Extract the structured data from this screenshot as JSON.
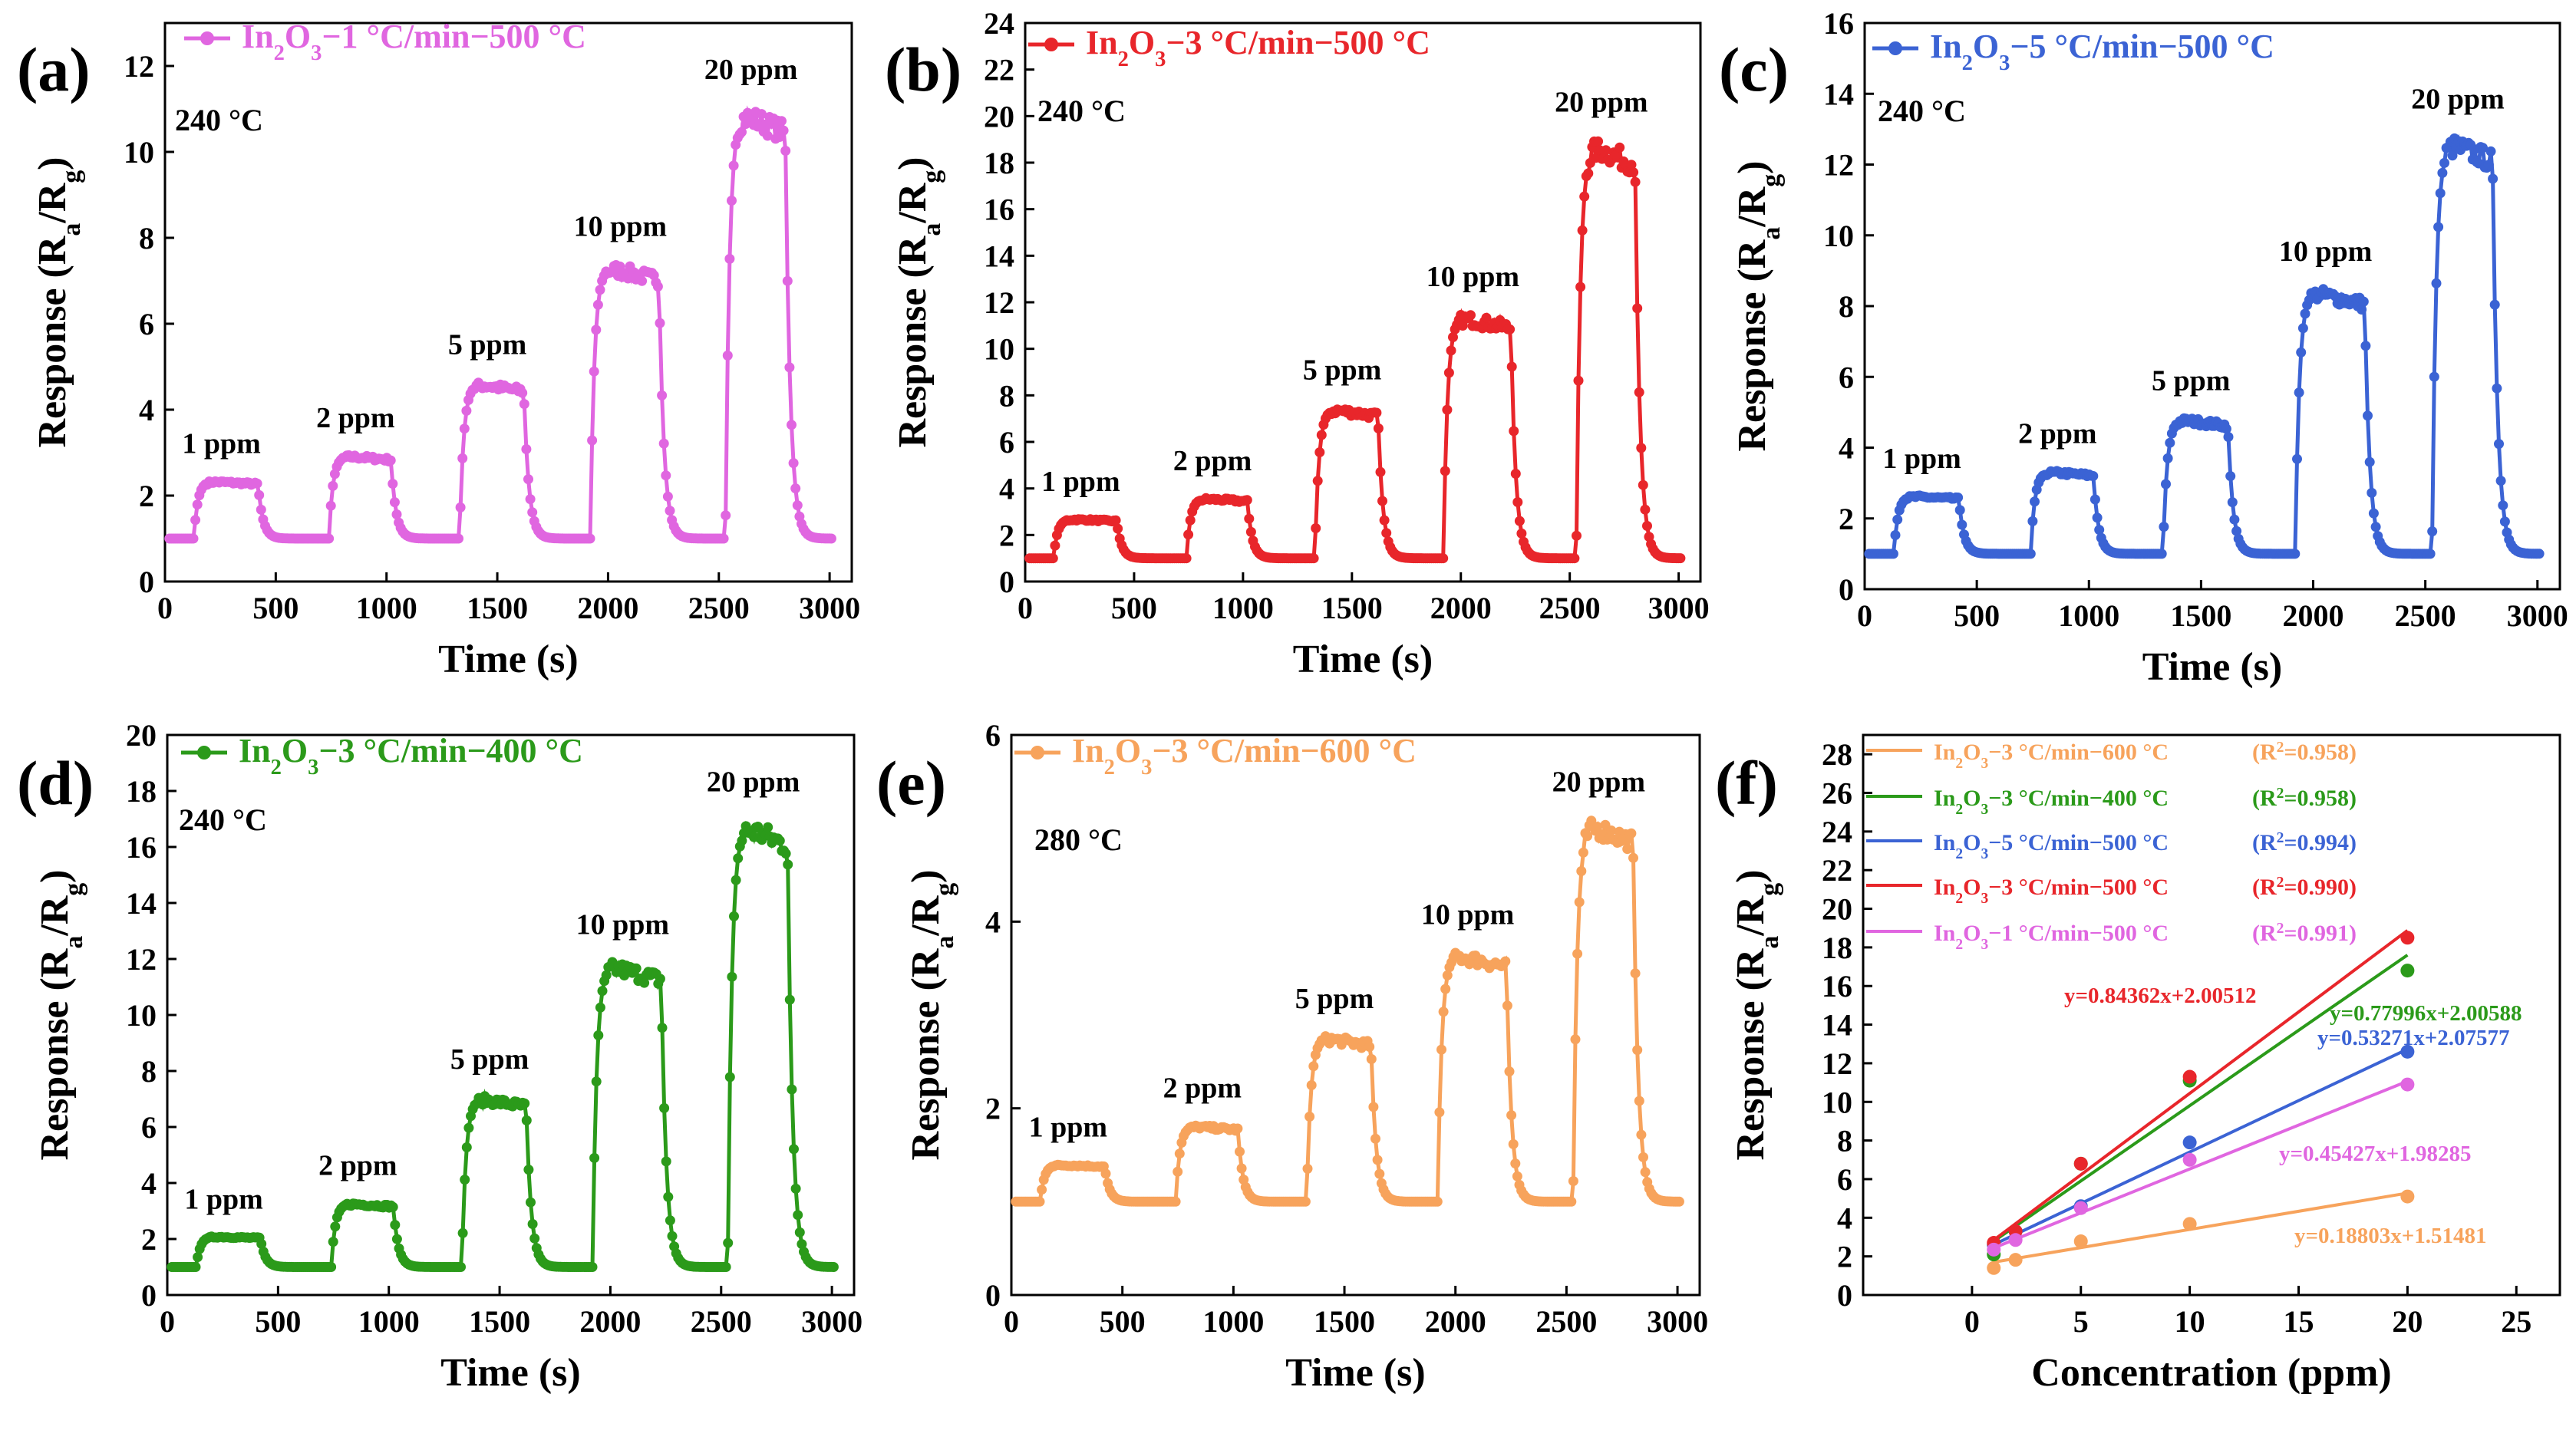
{
  "figure": {
    "panels": [
      {
        "label": "(a)",
        "temperature_label": "240 °C"
      },
      {
        "label": "(b)",
        "temperature_label": "240 °C"
      },
      {
        "label": "(c)",
        "temperature_label": "240 °C"
      },
      {
        "label": "(d)",
        "temperature_label": "240 °C"
      },
      {
        "label": "(e)",
        "temperature_label": "280 °C"
      },
      {
        "label": "(f)",
        "temperature_label": ""
      }
    ]
  },
  "chart_data": [
    {
      "type": "line",
      "panel": "(a)",
      "title": "",
      "legend": "In2O3−1 °C/min−500 °C",
      "color": "#E066E0",
      "xlabel": "Time (s)",
      "ylabel": "Response (Ra/Rg)",
      "xlim": [
        0,
        3100
      ],
      "ylim": [
        0,
        13
      ],
      "xticks": [
        0,
        500,
        1000,
        1500,
        2000,
        2500,
        3000
      ],
      "yticks": [
        0,
        2,
        4,
        6,
        8,
        10,
        12
      ],
      "baseline": 1.0,
      "pulses": [
        {
          "label": "1 ppm",
          "on": 130,
          "off": 420,
          "peak": 2.35
        },
        {
          "label": "2 ppm",
          "on": 740,
          "off": 1020,
          "peak": 2.95
        },
        {
          "label": "5 ppm",
          "on": 1330,
          "off": 1620,
          "peak": 4.65
        },
        {
          "label": "10 ppm",
          "on": 1920,
          "off": 2230,
          "peak": 7.4
        },
        {
          "label": "20 ppm",
          "on": 2530,
          "off": 2800,
          "peak": 11.05
        }
      ]
    },
    {
      "type": "line",
      "panel": "(b)",
      "title": "",
      "legend": "In2O3−3 °C/min−500 °C",
      "color": "#E8262B",
      "xlabel": "Time (s)",
      "ylabel": "Response (Ra/Rg)",
      "xlim": [
        0,
        3100
      ],
      "ylim": [
        0,
        24
      ],
      "xticks": [
        0,
        500,
        1000,
        1500,
        2000,
        2500,
        3000
      ],
      "yticks": [
        0,
        2,
        4,
        6,
        8,
        10,
        12,
        14,
        16,
        18,
        20,
        22,
        24
      ],
      "baseline": 1.0,
      "pulses": [
        {
          "label": "1 ppm",
          "on": 130,
          "off": 420,
          "peak": 2.7
        },
        {
          "label": "2 ppm",
          "on": 740,
          "off": 1020,
          "peak": 3.6
        },
        {
          "label": "5 ppm",
          "on": 1330,
          "off": 1620,
          "peak": 7.5
        },
        {
          "label": "10 ppm",
          "on": 1920,
          "off": 2230,
          "peak": 11.5
        },
        {
          "label": "20 ppm",
          "on": 2530,
          "off": 2800,
          "peak": 19.0
        }
      ]
    },
    {
      "type": "line",
      "panel": "(c)",
      "title": "",
      "legend": "In2O3−5 °C/min−500 °C",
      "color": "#3B63D4",
      "xlabel": "Time (s)",
      "ylabel": "Response (Ra/Rg)",
      "xlim": [
        0,
        3100
      ],
      "ylim": [
        0,
        16
      ],
      "xticks": [
        0,
        500,
        1000,
        1500,
        2000,
        2500,
        3000
      ],
      "yticks": [
        0,
        2,
        4,
        6,
        8,
        10,
        12,
        14,
        16
      ],
      "baseline": 1.0,
      "pulses": [
        {
          "label": "1 ppm",
          "on": 130,
          "off": 420,
          "peak": 2.65
        },
        {
          "label": "2 ppm",
          "on": 740,
          "off": 1020,
          "peak": 3.35
        },
        {
          "label": "5 ppm",
          "on": 1330,
          "off": 1620,
          "peak": 4.85
        },
        {
          "label": "10 ppm",
          "on": 1920,
          "off": 2230,
          "peak": 8.5
        },
        {
          "label": "20 ppm",
          "on": 2530,
          "off": 2800,
          "peak": 12.8
        }
      ]
    },
    {
      "type": "line",
      "panel": "(d)",
      "title": "",
      "legend": "In2O3−3 °C/min−400 °C",
      "color": "#2B9A1A",
      "xlabel": "Time (s)",
      "ylabel": "Response (Ra/Rg)",
      "xlim": [
        0,
        3100
      ],
      "ylim": [
        0,
        20
      ],
      "xticks": [
        0,
        500,
        1000,
        1500,
        2000,
        2500,
        3000
      ],
      "yticks": [
        0,
        2,
        4,
        6,
        8,
        10,
        12,
        14,
        16,
        18,
        20
      ],
      "baseline": 1.0,
      "pulses": [
        {
          "label": "1 ppm",
          "on": 130,
          "off": 420,
          "peak": 2.1
        },
        {
          "label": "2 ppm",
          "on": 740,
          "off": 1020,
          "peak": 3.3
        },
        {
          "label": "5 ppm",
          "on": 1330,
          "off": 1620,
          "peak": 7.1
        },
        {
          "label": "10 ppm",
          "on": 1920,
          "off": 2230,
          "peak": 11.9
        },
        {
          "label": "20 ppm",
          "on": 2530,
          "off": 2800,
          "peak": 17.0
        }
      ]
    },
    {
      "type": "line",
      "panel": "(e)",
      "title": "",
      "legend": "In2O3−3 °C/min−600 °C",
      "color": "#F7A35C",
      "xlabel": "Time (s)",
      "ylabel": "Response (Ra/Rg)",
      "xlim": [
        0,
        3100
      ],
      "ylim": [
        0,
        6
      ],
      "xticks": [
        0,
        500,
        1000,
        1500,
        2000,
        2500,
        3000
      ],
      "yticks": [
        0,
        2,
        4,
        6
      ],
      "baseline": 1.0,
      "pulses": [
        {
          "label": "1 ppm",
          "on": 130,
          "off": 420,
          "peak": 1.4
        },
        {
          "label": "2 ppm",
          "on": 740,
          "off": 1020,
          "peak": 1.82
        },
        {
          "label": "5 ppm",
          "on": 1330,
          "off": 1620,
          "peak": 2.78
        },
        {
          "label": "10 ppm",
          "on": 1920,
          "off": 2230,
          "peak": 3.68
        },
        {
          "label": "20 ppm",
          "on": 2530,
          "off": 2800,
          "peak": 5.1
        }
      ]
    },
    {
      "type": "scatter",
      "panel": "(f)",
      "title": "",
      "xlabel": "Concentration (ppm)",
      "ylabel": "Response (Ra/Rg)",
      "xlim": [
        -5,
        27
      ],
      "ylim": [
        0,
        29
      ],
      "xticks": [
        0,
        5,
        10,
        15,
        20,
        25
      ],
      "yticks": [
        0,
        2,
        4,
        6,
        8,
        10,
        12,
        14,
        16,
        18,
        20,
        22,
        24,
        26,
        28
      ],
      "x": [
        1,
        2,
        5,
        10,
        20
      ],
      "series": [
        {
          "name": "In2O3−3 °C/min−600 °C",
          "r2": "(R2=0.958)",
          "color": "#F7A35C",
          "values": [
            1.4,
            1.82,
            2.78,
            3.68,
            5.1
          ],
          "fit": {
            "slope": 0.18803,
            "intercept": 1.51481
          },
          "equation": "y=0.18803x+1.51481"
        },
        {
          "name": "In2O3−3 °C/min−400 °C",
          "r2": "(R2=0.958)",
          "color": "#2B9A1A",
          "values": [
            2.1,
            3.3,
            6.8,
            11.1,
            16.8
          ],
          "fit": {
            "slope": 0.77996,
            "intercept": 2.00588
          },
          "equation": "y=0.77996x+2.00588"
        },
        {
          "name": "In2O3−5 °C/min−500 °C",
          "r2": "(R2=0.994)",
          "color": "#3B63D4",
          "values": [
            2.6,
            3.3,
            4.6,
            7.9,
            12.6
          ],
          "fit": {
            "slope": 0.53271,
            "intercept": 2.07577
          },
          "equation": "y=0.53271x+2.07577"
        },
        {
          "name": "In2O3−3 °C/min−500 °C",
          "r2": "(R2=0.990)",
          "color": "#E8262B",
          "values": [
            2.7,
            3.3,
            6.8,
            11.3,
            18.5
          ],
          "fit": {
            "slope": 0.84362,
            "intercept": 2.00512
          },
          "equation": "y=0.84362x+2.00512"
        },
        {
          "name": "In2O3−1 °C/min−500 °C",
          "r2": "(R2=0.991)",
          "color": "#E066E0",
          "values": [
            2.35,
            2.85,
            4.5,
            7.0,
            10.9
          ],
          "fit": {
            "slope": 0.45427,
            "intercept": 1.98285
          },
          "equation": "y=0.45427x+1.98285"
        }
      ]
    }
  ]
}
